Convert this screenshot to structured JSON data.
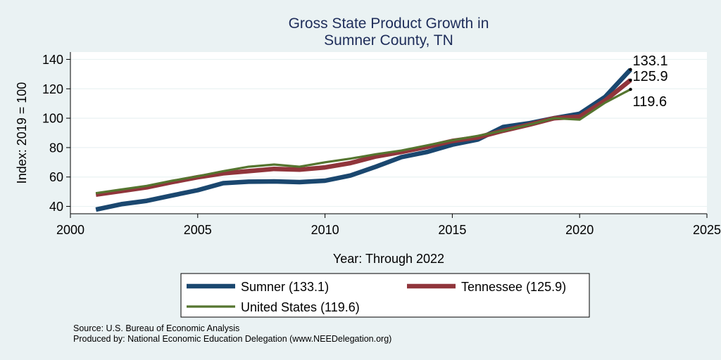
{
  "chart_data": {
    "type": "line",
    "title": [
      "Gross State Product Growth in",
      "Sumner County, TN"
    ],
    "xlabel": "Year: Through 2022",
    "ylabel": "Index: 2019 = 100",
    "xlim": [
      2000,
      2025
    ],
    "ylim": [
      35,
      145
    ],
    "xticks": [
      2000,
      2005,
      2010,
      2015,
      2020,
      2025
    ],
    "yticks": [
      40,
      60,
      80,
      100,
      120,
      140
    ],
    "grid": true,
    "legend_position": "bottom",
    "x": [
      2001,
      2002,
      2003,
      2004,
      2005,
      2006,
      2007,
      2008,
      2009,
      2010,
      2011,
      2012,
      2013,
      2014,
      2015,
      2016,
      2017,
      2018,
      2019,
      2020,
      2021,
      2022
    ],
    "series": [
      {
        "name": "Sumner  (133.1)",
        "color": "#1a476f",
        "values": [
          37.8,
          41.5,
          43.8,
          47.5,
          51.0,
          55.8,
          56.8,
          57.0,
          56.5,
          57.5,
          61.0,
          67.0,
          73.5,
          77.0,
          82.0,
          85.5,
          94.0,
          96.5,
          100.0,
          103.0,
          114.5,
          133.1
        ],
        "end_label": "133.1"
      },
      {
        "name": "Tennessee (125.9)",
        "color": "#90353b",
        "values": [
          48.0,
          50.5,
          53.0,
          56.5,
          59.8,
          62.5,
          64.0,
          65.5,
          65.0,
          66.5,
          69.5,
          74.0,
          77.0,
          80.5,
          84.5,
          87.0,
          91.5,
          95.5,
          100.0,
          101.0,
          112.0,
          125.9
        ],
        "end_label": "125.9"
      },
      {
        "name": "United States (119.6)",
        "color": "#55752f",
        "values": [
          49.0,
          51.5,
          54.0,
          57.5,
          60.5,
          64.0,
          67.0,
          68.5,
          67.0,
          70.0,
          72.5,
          75.5,
          78.0,
          81.5,
          85.0,
          88.0,
          91.5,
          95.5,
          100.0,
          99.0,
          110.5,
          119.6
        ],
        "end_label": "119.6"
      }
    ]
  },
  "source": {
    "line1": "Source: U.S. Bureau of Economic Analysis",
    "line2": "Produced by: National Economic Education Delegation (www.NEEDelegation.org)"
  }
}
